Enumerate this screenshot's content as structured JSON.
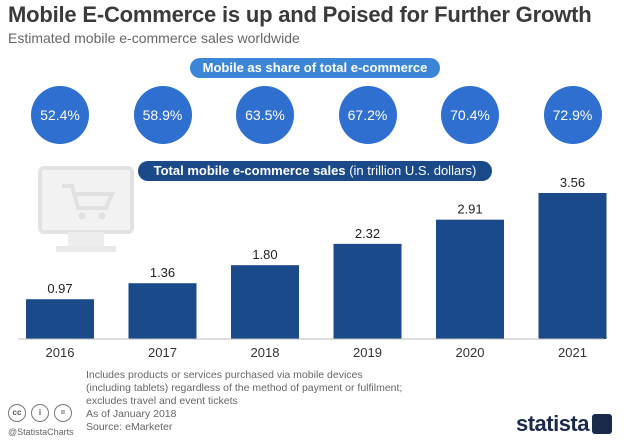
{
  "header": {
    "title": "Mobile E-Commerce is up and Poised for Further Growth",
    "subtitle": "Estimated mobile e-commerce sales worldwide"
  },
  "share_banner": "Mobile as share of total e-commerce",
  "total_banner": {
    "bold": "Total mobile e-commerce sales",
    "rest": " (in trillion U.S. dollars)"
  },
  "colors": {
    "bar": "#1a4a8a",
    "circle": "#2e6fd0",
    "pill_share": "#3c86d8",
    "axis": "#bbbbbb"
  },
  "chart_data": {
    "type": "bar",
    "title": "Total mobile e-commerce sales (in trillion U.S. dollars)",
    "categories": [
      "2016",
      "2017",
      "2018",
      "2019",
      "2020",
      "2021"
    ],
    "values": [
      0.97,
      1.36,
      1.8,
      2.32,
      2.91,
      3.56
    ],
    "value_labels": [
      "0.97",
      "1.36",
      "1.80",
      "2.32",
      "2.91",
      "3.56"
    ],
    "share_of_total": [
      "52.4%",
      "58.9%",
      "63.5%",
      "67.2%",
      "70.4%",
      "72.9%"
    ],
    "ylim": [
      0,
      3.56
    ],
    "grid": false,
    "legend": "none"
  },
  "footnote": {
    "lines": [
      "Includes products or services purchased via mobile devices",
      "(including tablets) regardless of the method of payment or fulfilment;",
      "excludes travel and event tickets",
      "As of January 2018",
      "Source: eMarketer"
    ]
  },
  "license_icons": [
    "cc",
    "i",
    "="
  ],
  "social_handle": "@StatistaCharts",
  "brand": "statista"
}
